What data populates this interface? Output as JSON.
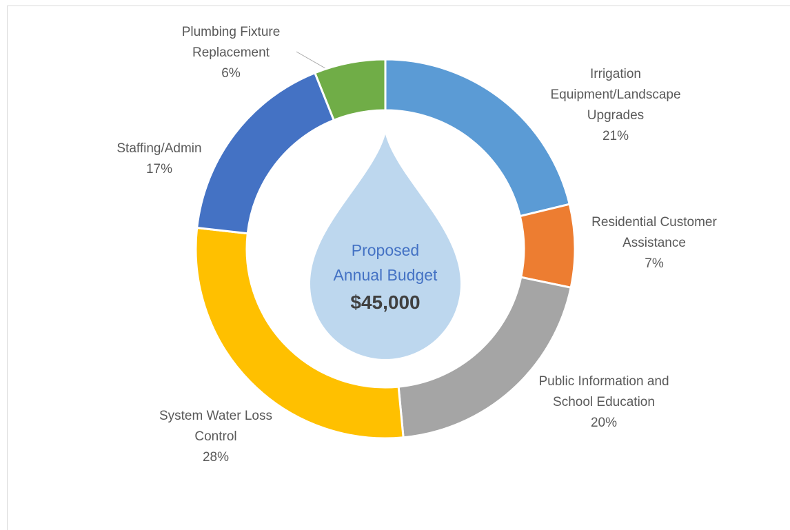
{
  "chart_data": {
    "type": "donut",
    "categories": [
      "Irrigation Equipment/Landscape Upgrades",
      "Residential Customer Assistance",
      "Public Information and School Education",
      "System Water Loss Control",
      "Staffing/Admin",
      "Plumbing Fixture Replacement"
    ],
    "values": [
      21,
      7,
      20,
      28,
      17,
      6
    ],
    "value_labels": [
      "21%",
      "7%",
      "20%",
      "28%",
      "17%",
      "6%"
    ],
    "colors": [
      "#5b9bd5",
      "#ed7d31",
      "#a5a5a5",
      "#ffc000",
      "#4472c4",
      "#70ad47"
    ],
    "center_label": "Proposed Annual Budget",
    "center_value": "$45,000"
  }
}
